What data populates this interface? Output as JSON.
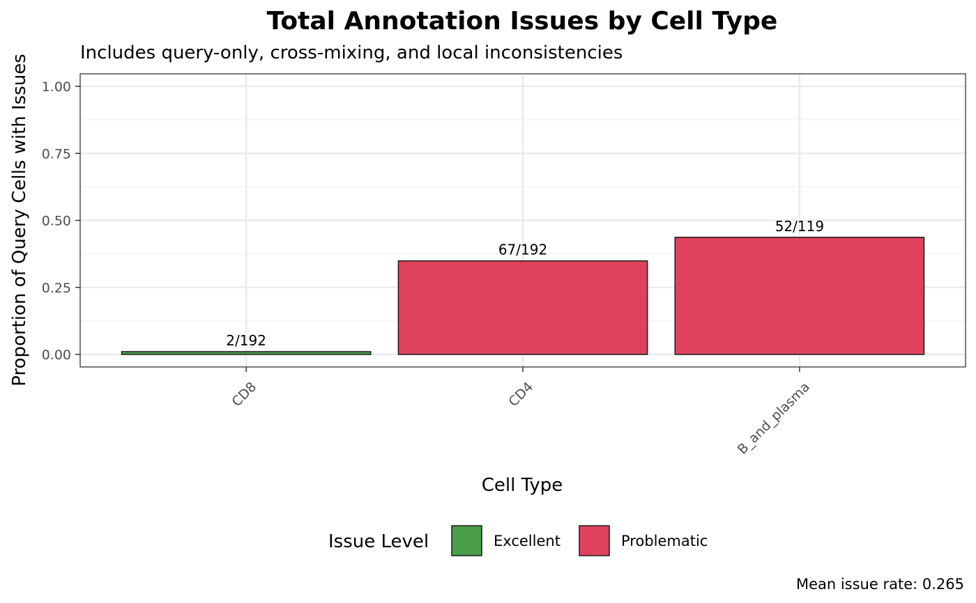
{
  "chart_data": {
    "type": "bar",
    "title": "Total Annotation Issues by Cell Type",
    "subtitle": "Includes query-only, cross-mixing, and local inconsistencies",
    "xlabel": "Cell Type",
    "ylabel": "Proportion of Query Cells with Issues",
    "categories": [
      "CD8",
      "CD4",
      "B_and_plasma"
    ],
    "values": [
      0.0104,
      0.349,
      0.437
    ],
    "bar_labels": [
      "2/192",
      "67/192",
      "52/119"
    ],
    "issue_levels": [
      "Excellent",
      "Problematic",
      "Problematic"
    ],
    "ylim": [
      0,
      1
    ],
    "yticks": [
      0,
      0.25,
      0.5,
      0.75,
      1
    ],
    "ytick_labels": [
      "0.00",
      "0.25",
      "0.50",
      "0.75",
      "1.00"
    ],
    "grid": true,
    "legend": {
      "title": "Issue Level",
      "position": "bottom",
      "entries": [
        {
          "name": "Excellent",
          "color": "#4a9e4a"
        },
        {
          "name": "Problematic",
          "color": "#e0425e"
        }
      ]
    },
    "caption": "Mean issue rate: 0.265"
  }
}
